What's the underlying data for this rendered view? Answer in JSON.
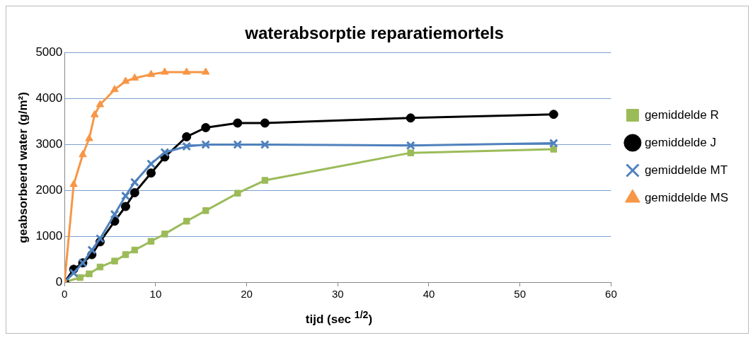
{
  "chart_data": {
    "type": "line",
    "title": "waterabsorptie reparatiemortels",
    "xlabel": "tijd (sec $^{1/2}$)",
    "ylabel": "geabsorbeerd water (g/m²)",
    "xlim": [
      0,
      60
    ],
    "xticks": [
      0,
      10,
      20,
      30,
      40,
      50,
      60
    ],
    "ylim": [
      0,
      5000
    ],
    "yticks": [
      0,
      1000,
      2000,
      3000,
      4000,
      5000
    ],
    "grid": "y",
    "legend": "right",
    "line_style": "solid",
    "series": [
      {
        "name": "gemiddelde R",
        "color": "#9bbb59",
        "marker": "square",
        "x": [
          0,
          1.7,
          2.7,
          3.9,
          5.5,
          6.7,
          7.7,
          9.5,
          11,
          13.4,
          15.5,
          19,
          22,
          38,
          53.7
        ],
        "values": [
          0,
          100,
          180,
          330,
          460,
          600,
          700,
          890,
          1050,
          1330,
          1560,
          1940,
          2220,
          2820,
          2900
        ]
      },
      {
        "name": "gemiddelde J",
        "color": "#000000",
        "marker": "circle",
        "x": [
          0,
          1,
          2,
          3,
          3.9,
          5.5,
          6.7,
          7.7,
          9.5,
          11,
          13.4,
          15.5,
          19,
          22,
          38,
          53.7
        ],
        "values": [
          0,
          280,
          420,
          600,
          880,
          1330,
          1650,
          1950,
          2380,
          2730,
          3170,
          3370,
          3470,
          3470,
          3580,
          3660
        ]
      },
      {
        "name": "gemiddelde MT",
        "color": "#4f81bd",
        "marker": "cross",
        "x": [
          0,
          1,
          2,
          3,
          3.9,
          5.5,
          6.7,
          7.7,
          9.5,
          11,
          13.4,
          15.5,
          19,
          22,
          38,
          53.7
        ],
        "values": [
          0,
          200,
          420,
          700,
          950,
          1480,
          1880,
          2180,
          2580,
          2830,
          2960,
          3000,
          3000,
          3000,
          2980,
          3030
        ]
      },
      {
        "name": "gemiddelde MS",
        "color": "#f79646",
        "marker": "triangle",
        "x": [
          0,
          1,
          2,
          2.7,
          3.3,
          3.9,
          5.5,
          6.7,
          7.7,
          9.5,
          11,
          13.4,
          15.5
        ],
        "values": [
          0,
          2130,
          2780,
          3130,
          3650,
          3870,
          4200,
          4380,
          4450,
          4530,
          4580,
          4580,
          4580
        ]
      }
    ]
  }
}
